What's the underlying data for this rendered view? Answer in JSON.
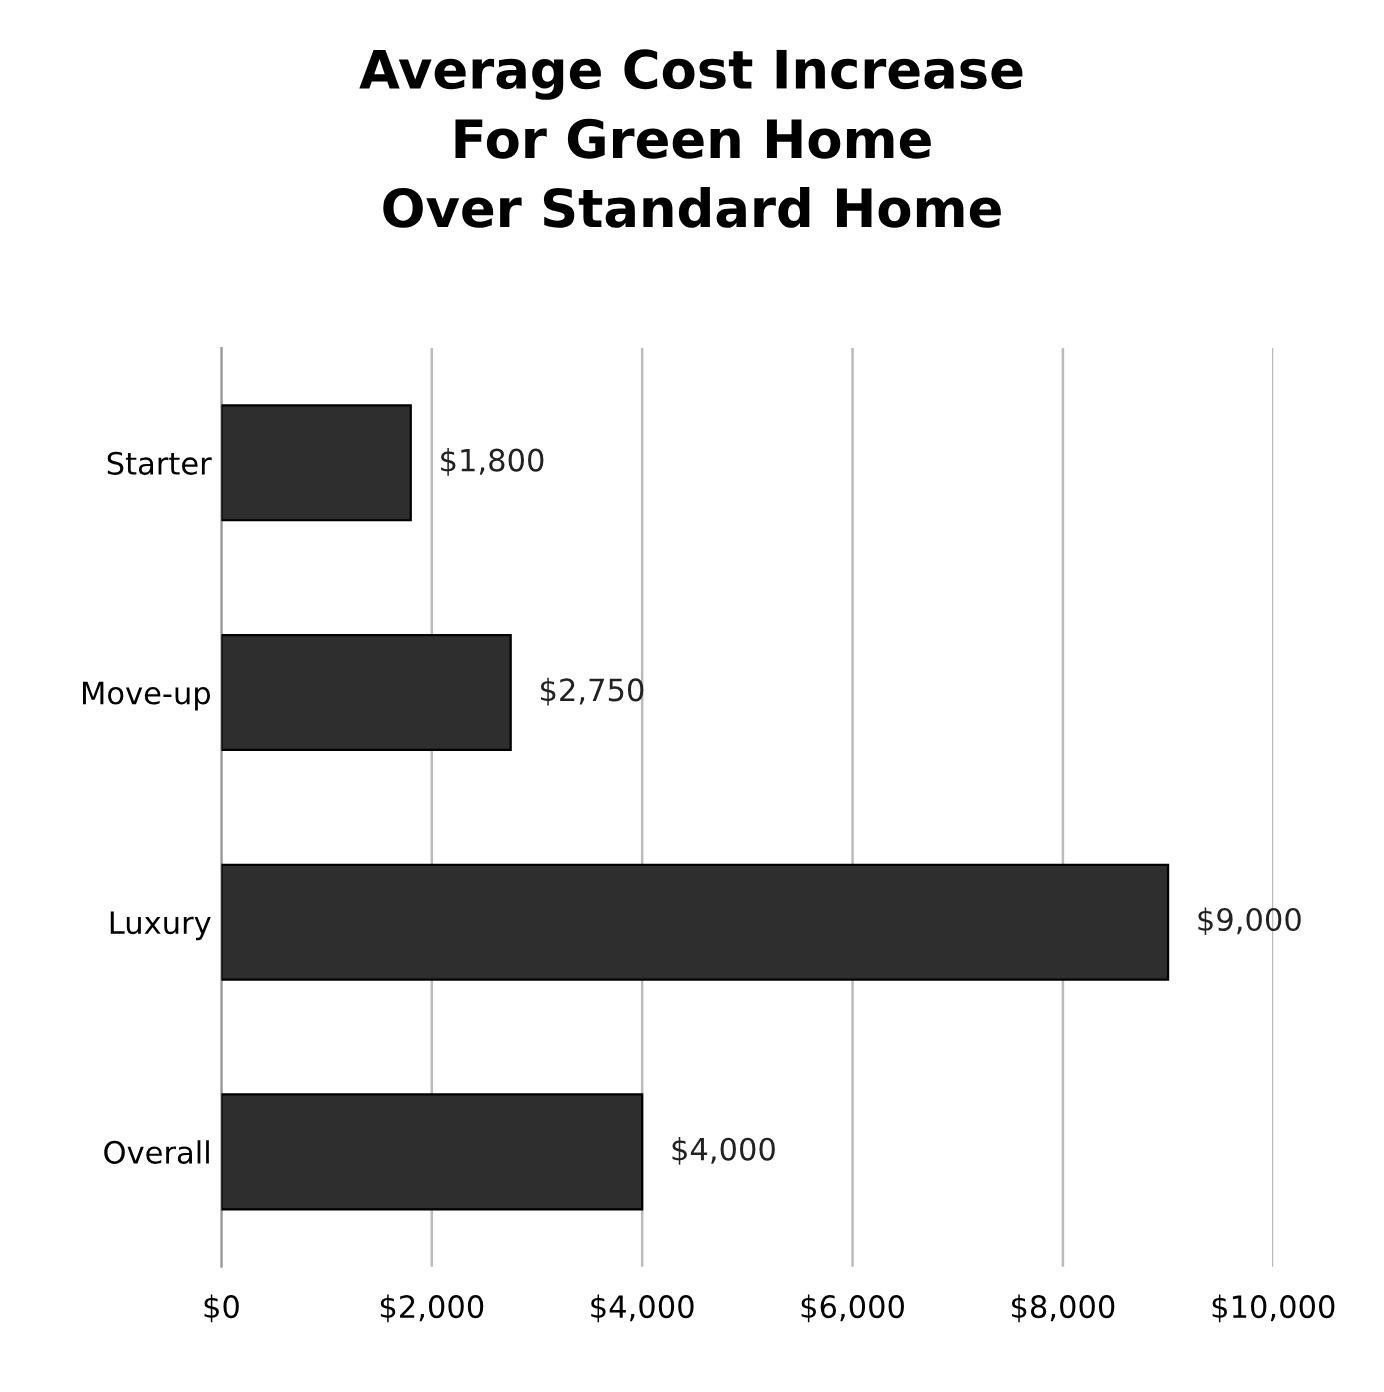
{
  "chart_data": {
    "type": "bar",
    "orientation": "horizontal",
    "title": "Average Cost Increase\nFor Green Home\nOver Standard Home",
    "categories": [
      "Starter",
      "Move-up",
      "Luxury",
      "Overall"
    ],
    "values": [
      1800,
      2750,
      9000,
      4000
    ],
    "value_labels": [
      "$1,800",
      "$2,750",
      "$9,000",
      "$4,000"
    ],
    "color": "#2e2e2e",
    "xlim": [
      0,
      10000
    ],
    "xticks": [
      {
        "value": 0,
        "label": "$0"
      },
      {
        "value": 2000,
        "label": "$2,000"
      },
      {
        "value": 4000,
        "label": "$4,000"
      },
      {
        "value": 6000,
        "label": "$6,000"
      },
      {
        "value": 8000,
        "label": "$8,000"
      },
      {
        "value": 10000,
        "label": "$10,000"
      }
    ],
    "grid": "x"
  }
}
